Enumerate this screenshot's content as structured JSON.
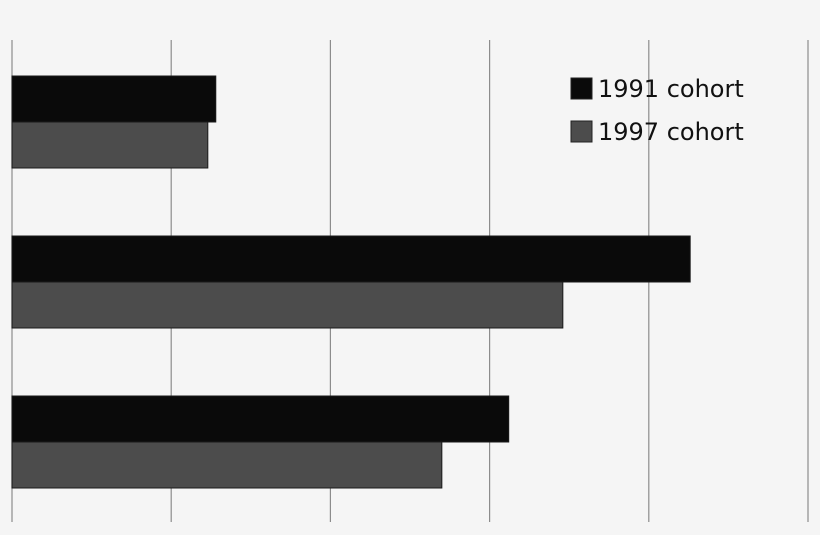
{
  "chart_data": {
    "type": "bar",
    "orientation": "horizontal",
    "categories": [
      "",
      "",
      ""
    ],
    "series": [
      {
        "name": "1991 cohort",
        "color": "#0a0a0a",
        "values": [
          6.4,
          21.3,
          15.6
        ]
      },
      {
        "name": "1997 cohort",
        "color": "#4c4c4c",
        "values": [
          6.15,
          17.3,
          13.5
        ]
      }
    ],
    "xlim": [
      0,
      25
    ],
    "grid_step": 5,
    "grid": true,
    "legend": "top-right",
    "title": "",
    "xlabel": "",
    "ylabel": ""
  }
}
